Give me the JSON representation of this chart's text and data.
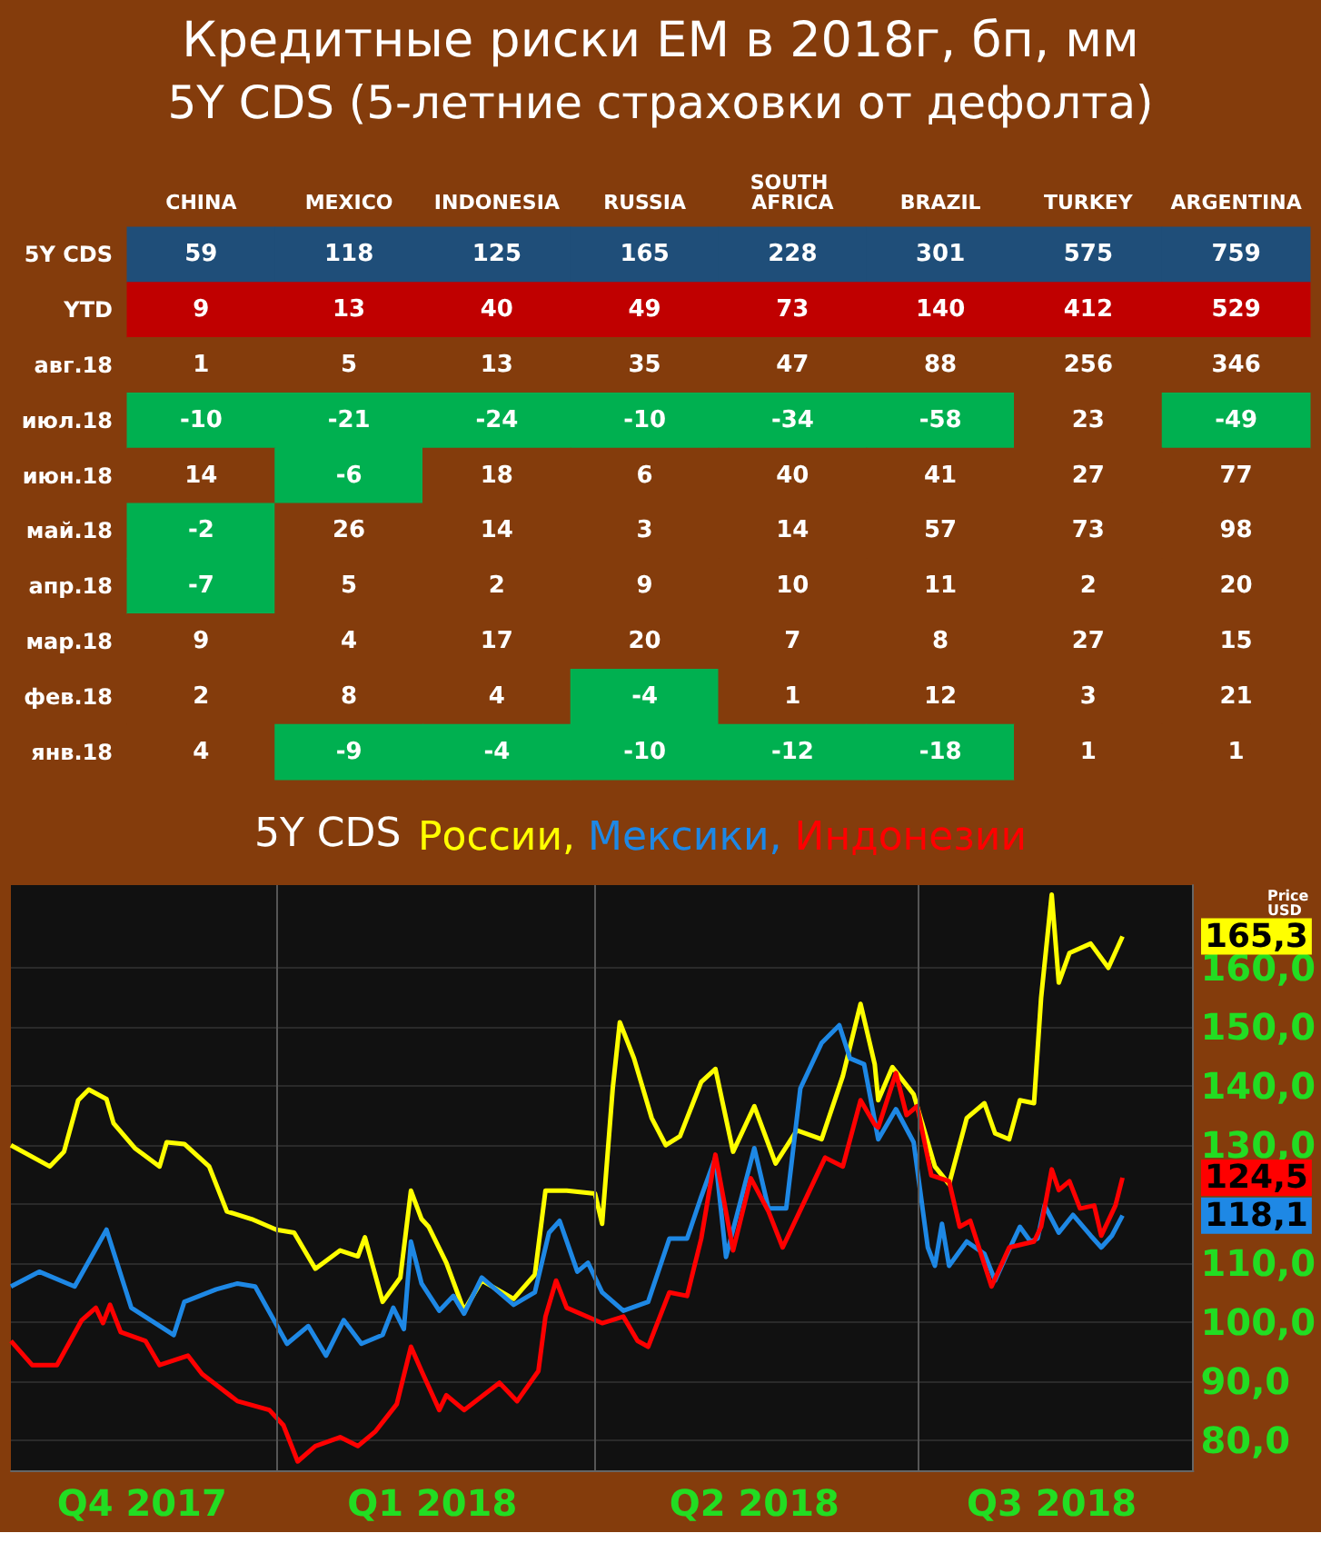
{
  "chart_data": [
    {
      "type": "heatmap",
      "data_labels": true,
      "title": "Кредитные риски EM в 2018г, бп, мм",
      "subtitle": "5Y CDS (5-летние страховки от дефолта)",
      "categories": [
        "CHINA",
        "MEXICO",
        "INDONESIA",
        "RUSSIA",
        "SOUTH AFRICA",
        "BRAZIL",
        "TURKEY",
        "ARGENTINA"
      ],
      "y_categories": [
        "5Y CDS",
        "YTD",
        "авг.18",
        "июл.18",
        "июн.18",
        "май.18",
        "апр.18",
        "мар.18",
        "фев.18",
        "янв.18"
      ],
      "cells": [
        [
          59,
          118,
          125,
          165,
          228,
          301,
          575,
          759
        ],
        [
          9,
          13,
          40,
          49,
          73,
          140,
          412,
          529
        ],
        [
          1,
          5,
          13,
          35,
          47,
          88,
          256,
          346
        ],
        [
          -10,
          -21,
          -24,
          -10,
          -34,
          -58,
          23,
          -49
        ],
        [
          14,
          -6,
          18,
          6,
          40,
          41,
          27,
          77
        ],
        [
          -2,
          26,
          14,
          3,
          14,
          57,
          73,
          98
        ],
        [
          -7,
          5,
          2,
          9,
          10,
          11,
          2,
          20
        ],
        [
          9,
          4,
          17,
          20,
          7,
          8,
          27,
          15
        ],
        [
          2,
          8,
          4,
          -4,
          1,
          12,
          3,
          21
        ],
        [
          4,
          -9,
          -4,
          -10,
          -12,
          -18,
          1,
          1
        ]
      ]
    },
    {
      "type": "line",
      "title": "5Y CDS",
      "legend": "top",
      "grid": "y",
      "line_style": "solid",
      "marker": "none",
      "xlim": [
        "2017-10-18",
        "2018-09-17"
      ],
      "ylim": [
        75,
        174
      ],
      "xticks": [
        {
          "value": "2017-11-24",
          "label": "Q4 2017"
        },
        {
          "value": "2018-02-14",
          "label": "Q1 2018"
        },
        {
          "value": "2018-05-16",
          "label": "Q2 2018"
        },
        {
          "value": "2018-08-08",
          "label": "Q3 2018"
        }
      ],
      "yticks": [
        {
          "value": 80,
          "label": "80,0"
        },
        {
          "value": 90,
          "label": "90,0"
        },
        {
          "value": 100,
          "label": "100,0"
        },
        {
          "value": 110,
          "label": "110,0"
        },
        {
          "value": 120,
          "label": null
        },
        {
          "value": 130,
          "label": "130,0"
        },
        {
          "value": 140,
          "label": "140,0"
        },
        {
          "value": 150,
          "label": "150,0"
        },
        {
          "value": 160,
          "label": "160,0"
        }
      ],
      "ref_lines": [
        {
          "axis": "x",
          "value": "2018-01-01",
          "label": null,
          "color": "#555555"
        },
        {
          "axis": "x",
          "value": "2018-04-01",
          "label": null,
          "color": "#555555"
        },
        {
          "axis": "x",
          "value": "2018-07-01",
          "label": null,
          "color": "#555555"
        }
      ],
      "annotations": [
        "Price USD",
        {
          "text": "165,3",
          "x": "2018-08-28",
          "y": 165.3
        },
        {
          "text": "124,5",
          "x": "2018-08-28",
          "y": 124.5
        },
        {
          "text": "118,1",
          "x": "2018-08-28",
          "y": 118.1
        }
      ],
      "series": [
        {
          "name": "России,",
          "color": "#ffff00",
          "x": [
            "2017-10-18",
            "2017-10-29",
            "2017-11-02",
            "2017-11-06",
            "2017-11-09",
            "2017-11-14",
            "2017-11-16",
            "2017-11-22",
            "2017-11-29",
            "2017-12-01",
            "2017-12-06",
            "2017-12-13",
            "2017-12-18",
            "2017-12-25",
            "2018-01-01",
            "2018-01-06",
            "2018-01-12",
            "2018-01-19",
            "2018-01-24",
            "2018-01-26",
            "2018-01-31",
            "2018-02-05",
            "2018-02-08",
            "2018-02-11",
            "2018-02-13",
            "2018-02-18",
            "2018-02-23",
            "2018-02-28",
            "2018-03-09",
            "2018-03-15",
            "2018-03-18",
            "2018-03-24",
            "2018-04-01",
            "2018-04-03",
            "2018-04-06",
            "2018-04-08",
            "2018-04-12",
            "2018-04-17",
            "2018-04-21",
            "2018-04-25",
            "2018-05-01",
            "2018-05-05",
            "2018-05-10",
            "2018-05-16",
            "2018-05-22",
            "2018-05-28",
            "2018-06-04",
            "2018-06-10",
            "2018-06-15",
            "2018-06-19",
            "2018-06-20",
            "2018-06-24",
            "2018-06-30",
            "2018-07-06",
            "2018-07-10",
            "2018-07-15",
            "2018-07-20",
            "2018-07-23",
            "2018-07-27",
            "2018-07-30",
            "2018-08-03",
            "2018-08-05",
            "2018-08-08",
            "2018-08-10",
            "2018-08-13",
            "2018-08-19",
            "2018-08-24",
            "2018-08-28"
          ],
          "values": [
            130.0,
            126.4,
            128.9,
            137.6,
            139.4,
            137.8,
            133.7,
            129.5,
            126.4,
            130.5,
            130.2,
            126.4,
            118.8,
            117.5,
            115.7,
            115.2,
            109.1,
            112.2,
            111.2,
            114.4,
            103.5,
            107.6,
            122.3,
            117.5,
            116.2,
            110.1,
            102.0,
            107.1,
            104.0,
            108.1,
            122.3,
            122.3,
            121.8,
            116.7,
            139.6,
            150.8,
            144.7,
            134.6,
            130.0,
            131.5,
            140.7,
            142.9,
            128.9,
            136.6,
            126.9,
            132.5,
            131.0,
            141.7,
            153.9,
            143.7,
            137.6,
            143.2,
            138.6,
            126.4,
            123.4,
            134.6,
            137.1,
            132.0,
            131.0,
            137.6,
            137.1,
            154.9,
            172.4,
            157.5,
            162.5,
            164.1,
            160.0,
            165.3
          ]
        },
        {
          "name": "Мексики,",
          "color": "#1e88e5",
          "x": [
            "2017-10-18",
            "2017-10-26",
            "2017-11-05",
            "2017-11-14",
            "2017-11-21",
            "2017-12-03",
            "2017-12-06",
            "2017-12-15",
            "2017-12-21",
            "2017-12-26",
            "2018-01-04",
            "2018-01-10",
            "2018-01-15",
            "2018-01-20",
            "2018-01-25",
            "2018-01-31",
            "2018-02-03",
            "2018-02-06",
            "2018-02-08",
            "2018-02-11",
            "2018-02-16",
            "2018-02-20",
            "2018-02-23",
            "2018-02-28",
            "2018-03-09",
            "2018-03-15",
            "2018-03-19",
            "2018-03-22",
            "2018-03-27",
            "2018-03-30",
            "2018-04-03",
            "2018-04-09",
            "2018-04-16",
            "2018-04-22",
            "2018-04-27",
            "2018-05-01",
            "2018-05-05",
            "2018-05-08",
            "2018-05-16",
            "2018-05-20",
            "2018-05-25",
            "2018-05-29",
            "2018-06-04",
            "2018-06-09",
            "2018-06-12",
            "2018-06-16",
            "2018-06-20",
            "2018-06-25",
            "2018-06-30",
            "2018-07-04",
            "2018-07-06",
            "2018-07-08",
            "2018-07-10",
            "2018-07-15",
            "2018-07-20",
            "2018-07-23",
            "2018-07-26",
            "2018-07-30",
            "2018-08-02",
            "2018-08-04",
            "2018-08-06",
            "2018-08-10",
            "2018-08-14",
            "2018-08-19",
            "2018-08-22",
            "2018-08-25",
            "2018-08-28"
          ],
          "values": [
            106.1,
            108.6,
            106.1,
            115.7,
            102.5,
            97.9,
            103.5,
            105.6,
            106.6,
            106.1,
            96.4,
            99.4,
            94.4,
            100.4,
            96.4,
            97.9,
            102.5,
            98.9,
            113.7,
            106.6,
            102.0,
            104.5,
            101.5,
            107.6,
            103.0,
            105.1,
            115.2,
            117.2,
            108.6,
            110.1,
            105.1,
            102.0,
            103.5,
            114.2,
            114.2,
            121.3,
            127.9,
            111.1,
            129.5,
            119.3,
            119.3,
            139.6,
            147.3,
            150.3,
            144.7,
            143.7,
            131.0,
            136.1,
            130.5,
            112.7,
            109.6,
            116.7,
            109.6,
            113.7,
            111.6,
            107.1,
            111.1,
            116.2,
            113.7,
            114.2,
            119.8,
            115.2,
            118.2,
            114.7,
            112.7,
            114.7,
            118.1
          ]
        },
        {
          "name": "Индонезии",
          "color": "#ff0000",
          "x": [
            "2017-10-18",
            "2017-10-24",
            "2017-10-31",
            "2017-11-07",
            "2017-11-11",
            "2017-11-13",
            "2017-11-15",
            "2017-11-18",
            "2017-11-25",
            "2017-11-29",
            "2017-12-07",
            "2017-12-11",
            "2017-12-21",
            "2017-12-30",
            "2018-01-03",
            "2018-01-07",
            "2018-01-12",
            "2018-01-19",
            "2018-01-24",
            "2018-01-29",
            "2018-02-04",
            "2018-02-08",
            "2018-02-11",
            "2018-02-16",
            "2018-02-18",
            "2018-02-23",
            "2018-03-05",
            "2018-03-10",
            "2018-03-16",
            "2018-03-18",
            "2018-03-21",
            "2018-03-24",
            "2018-04-03",
            "2018-04-09",
            "2018-04-13",
            "2018-04-16",
            "2018-04-22",
            "2018-04-27",
            "2018-05-01",
            "2018-05-05",
            "2018-05-10",
            "2018-05-15",
            "2018-05-20",
            "2018-05-24",
            "2018-05-30",
            "2018-06-05",
            "2018-06-10",
            "2018-06-15",
            "2018-06-19",
            "2018-06-20",
            "2018-06-25",
            "2018-06-28",
            "2018-07-01",
            "2018-07-05",
            "2018-07-10",
            "2018-07-13",
            "2018-07-16",
            "2018-07-22",
            "2018-07-27",
            "2018-08-03",
            "2018-08-05",
            "2018-08-08",
            "2018-08-10",
            "2018-08-13",
            "2018-08-16",
            "2018-08-20",
            "2018-08-22",
            "2018-08-26",
            "2018-08-28"
          ],
          "values": [
            96.9,
            92.8,
            92.8,
            100.4,
            102.5,
            99.9,
            103.0,
            98.4,
            96.9,
            92.8,
            94.4,
            91.3,
            86.7,
            85.2,
            82.6,
            76.5,
            79.1,
            80.6,
            79.1,
            81.6,
            86.2,
            95.9,
            91.8,
            85.2,
            87.7,
            85.2,
            89.8,
            86.7,
            91.8,
            101.0,
            107.1,
            102.5,
            99.9,
            101.0,
            96.9,
            95.9,
            105.1,
            104.5,
            114.2,
            128.4,
            112.2,
            124.4,
            118.8,
            112.7,
            120.3,
            127.9,
            126.4,
            137.6,
            133.5,
            133.0,
            142.2,
            135.1,
            136.6,
            124.9,
            123.9,
            116.2,
            117.2,
            106.1,
            112.7,
            113.7,
            116.2,
            125.9,
            122.4,
            123.9,
            119.3,
            119.8,
            114.7,
            119.8,
            124.5
          ]
        }
      ]
    }
  ]
}
